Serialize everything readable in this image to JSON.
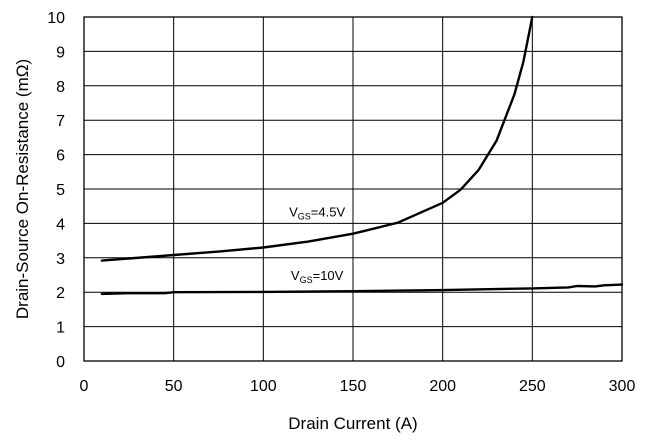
{
  "chart_data": {
    "type": "line",
    "title": "",
    "xlabel": "Drain Current (A)",
    "ylabel": "Drain-Source On-Resistance (mΩ)",
    "xlim": [
      0,
      300
    ],
    "ylim": [
      0,
      10
    ],
    "x_ticks": [
      "0",
      "50",
      "100",
      "150",
      "200",
      "250",
      "300"
    ],
    "y_ticks": [
      "0",
      "1",
      "2",
      "3",
      "4",
      "5",
      "6",
      "7",
      "8",
      "9",
      "10"
    ],
    "grid": true,
    "line_color": "#000000",
    "series": [
      {
        "annotation": {
          "main": "V",
          "sub": "GS",
          "suffix": "=4.5V",
          "at": [
            130,
            4.2
          ]
        },
        "points": [
          [
            10,
            2.92
          ],
          [
            25,
            2.98
          ],
          [
            50,
            3.08
          ],
          [
            75,
            3.18
          ],
          [
            100,
            3.3
          ],
          [
            125,
            3.47
          ],
          [
            150,
            3.7
          ],
          [
            175,
            4.02
          ],
          [
            200,
            4.6
          ],
          [
            210,
            4.98
          ],
          [
            220,
            5.55
          ],
          [
            230,
            6.4
          ],
          [
            240,
            7.75
          ],
          [
            245,
            8.7
          ],
          [
            250,
            10.0
          ]
        ]
      },
      {
        "annotation": {
          "main": "V",
          "sub": "GS",
          "suffix": "=10V",
          "at": [
            130,
            2.35
          ]
        },
        "points": [
          [
            10,
            1.95
          ],
          [
            25,
            1.97
          ],
          [
            45,
            1.97
          ],
          [
            50,
            2.0
          ],
          [
            100,
            2.01
          ],
          [
            150,
            2.03
          ],
          [
            200,
            2.06
          ],
          [
            250,
            2.11
          ],
          [
            270,
            2.14
          ],
          [
            275,
            2.18
          ],
          [
            285,
            2.17
          ],
          [
            290,
            2.2
          ],
          [
            300,
            2.22
          ]
        ]
      }
    ]
  }
}
